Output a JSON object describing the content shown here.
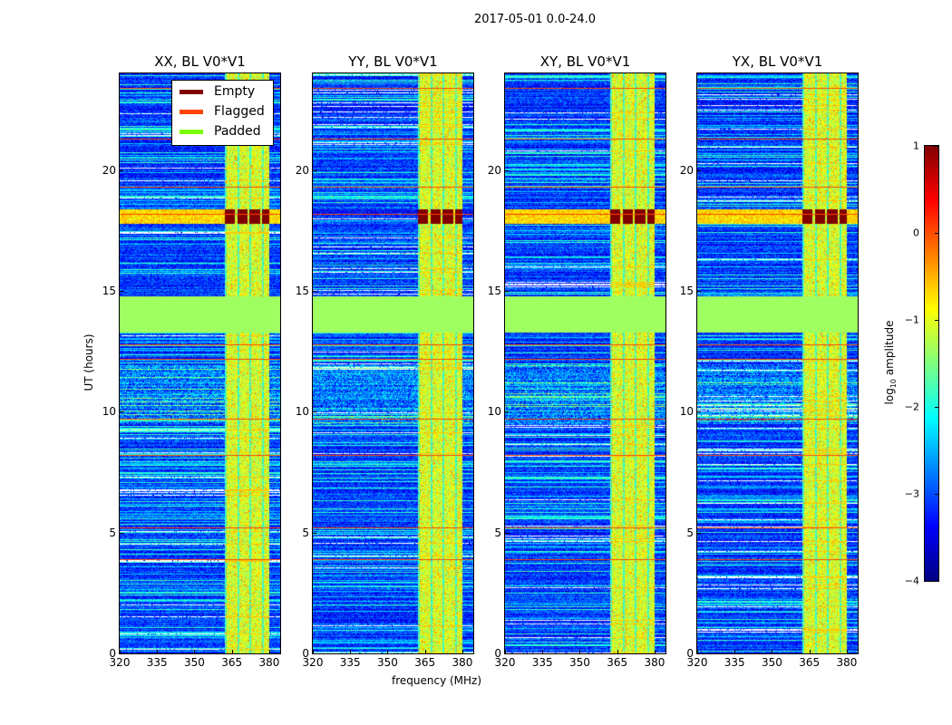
{
  "chart_data": {
    "type": "heatmap",
    "title": "2017-05-01 0.0-24.0",
    "xlabel": "frequency (MHz)",
    "ylabel": "UT (hours)",
    "xlim": [
      320,
      384.4
    ],
    "ylim": [
      0,
      24
    ],
    "xticks": [
      "320",
      "335",
      "350",
      "365",
      "380"
    ],
    "xtick_values": [
      320,
      335,
      350,
      365,
      380
    ],
    "yticks": [
      "0",
      "5",
      "10",
      "15",
      "20"
    ],
    "ytick_values": [
      0,
      5,
      10,
      15,
      20
    ],
    "panels": [
      {
        "title": "XX, BL V0*V1"
      },
      {
        "title": "YY, BL V0*V1"
      },
      {
        "title": "XY, BL V0*V1"
      },
      {
        "title": "YX, BL V0*V1"
      }
    ],
    "legend": {
      "placement": "upper-right of first panel",
      "entries": [
        {
          "label": "Empty",
          "color": "#800000"
        },
        {
          "label": "Flagged",
          "color": "#ff4500"
        },
        {
          "label": "Padded",
          "color": "#7cfc00"
        }
      ]
    },
    "colorbar": {
      "label_main": "log",
      "label_sub": "10",
      "label_rest": " amplitude",
      "range": [
        -4,
        1
      ],
      "ticks": [
        "1",
        "0",
        "−1",
        "−2",
        "−3",
        "−4"
      ],
      "tick_values": [
        1,
        0,
        -1,
        -2,
        -3,
        -4
      ],
      "colormap": "jet"
    },
    "features": {
      "background_log_amplitude": -3,
      "rfi_band_mhz": [
        362,
        380
      ],
      "rfi_log_amplitude": -1.2,
      "padded_band_hours": [
        13.3,
        14.8
      ],
      "empty_band_hours": [
        17.8,
        18.4
      ],
      "flagged_hours": [
        23.4,
        21.3,
        19.3,
        18.2,
        12.8,
        12.2,
        9.7,
        8.2,
        5.2,
        3.9
      ]
    }
  }
}
